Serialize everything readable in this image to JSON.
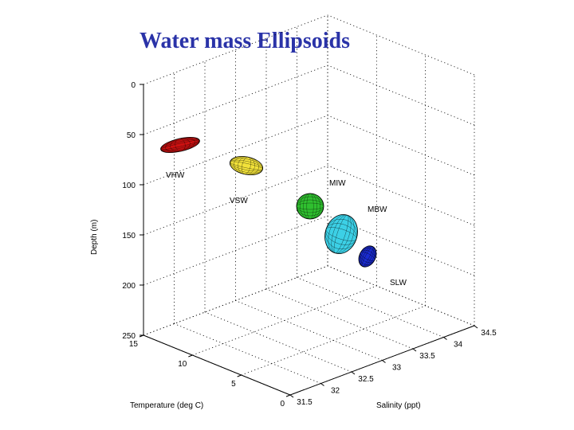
{
  "title": "Water mass Ellipsoids",
  "chart_data": {
    "type": "scatter",
    "title": "Water mass Ellipsoids",
    "xlabel": "Salinity (ppt)",
    "ylabel": "Temperature (deg C)",
    "zlabel": "Depth (m)",
    "xlim": [
      31.5,
      34.5
    ],
    "ylim": [
      0,
      15
    ],
    "zlim": [
      0,
      250
    ],
    "grid": true,
    "x_ticks": [
      "31.5",
      "32",
      "32.5",
      "33",
      "33.5",
      "34",
      "34.5"
    ],
    "y_ticks": [
      "0",
      "5",
      "10",
      "15"
    ],
    "z_ticks": [
      "0",
      "50",
      "100",
      "150",
      "200",
      "250"
    ],
    "series": [
      {
        "name": "VHW",
        "color": "#cc1111"
      },
      {
        "name": "VSW",
        "color": "#f2e23a"
      },
      {
        "name": "MIW",
        "color": "#2fbf2f"
      },
      {
        "name": "MBW",
        "color": "#3cd0e6"
      },
      {
        "name": "SLW",
        "color": "#1a2bd0"
      }
    ]
  }
}
